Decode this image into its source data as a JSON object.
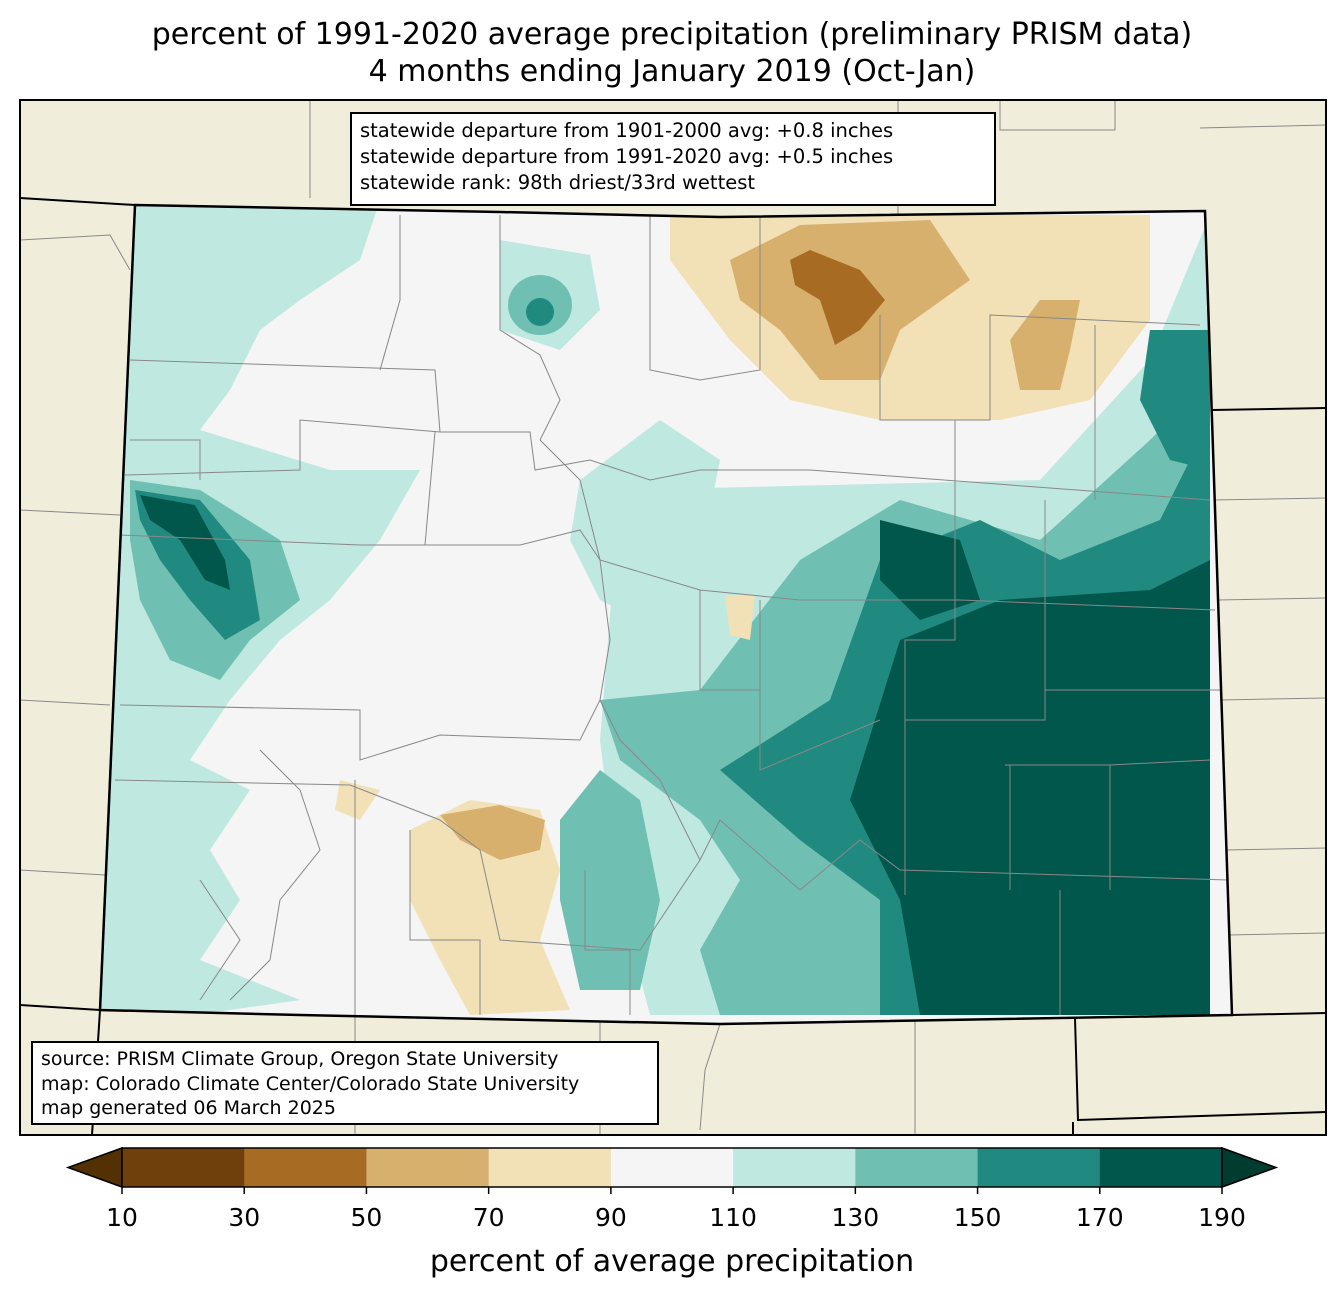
{
  "title_line1": "percent of 1991-2020 average precipitation (preliminary PRISM data)",
  "title_line2": "4 months ending January 2019 (Oct-Jan)",
  "stats": [
    "statewide departure from 1901-2000 avg: +0.8 inches",
    "statewide departure from 1991-2020 avg: +0.5 inches",
    "statewide rank: 98th driest/33rd wettest"
  ],
  "source": [
    "source: PRISM Climate Group, Oregon State University",
    "map: Colorado Climate Center/Colorado State University",
    "map generated 06 March 2025"
  ],
  "colorbar": {
    "label": "percent of average precipitation",
    "ticks": [
      "10",
      "30",
      "50",
      "70",
      "90",
      "110",
      "130",
      "150",
      "170",
      "190"
    ],
    "colors": [
      "#6f3f0c",
      "#a86b24",
      "#d8b06e",
      "#f2e1b6",
      "#f4f5f4",
      "#bfe8e1",
      "#6fc0b3",
      "#218a80",
      "#02574c"
    ],
    "under_color": "#543005",
    "over_color": "#003c30"
  },
  "map_colors": {
    "background": "#f0eedb",
    "state_border": "#000000",
    "county_border": "#888888"
  },
  "map_features": {
    "neighbor": "neighboring-states-background",
    "state": "colorado-outline",
    "counties": "county-boundaries",
    "regions": [
      {
        "name": "dry-northeast-core",
        "pct": 35
      },
      {
        "name": "dry-northeast",
        "pct": 55
      },
      {
        "name": "dry-northeast-plains",
        "pct": 80
      },
      {
        "name": "dry-southwest-valley",
        "pct": 80
      },
      {
        "name": "dry-san-luis",
        "pct": 65
      },
      {
        "name": "wet-western-slope",
        "pct": 120
      },
      {
        "name": "wet-northwest-core",
        "pct": 160
      },
      {
        "name": "wet-northwest-peak",
        "pct": 180
      },
      {
        "name": "wet-front-range",
        "pct": 120
      },
      {
        "name": "wet-southeast",
        "pct": 125
      },
      {
        "name": "wet-southeast-mid",
        "pct": 140
      },
      {
        "name": "wet-southeast-high",
        "pct": 160
      },
      {
        "name": "wet-southeast-core",
        "pct": 185
      },
      {
        "name": "wet-north-park-spot",
        "pct": 150
      },
      {
        "name": "wet-sangre-spot",
        "pct": 140
      }
    ]
  }
}
